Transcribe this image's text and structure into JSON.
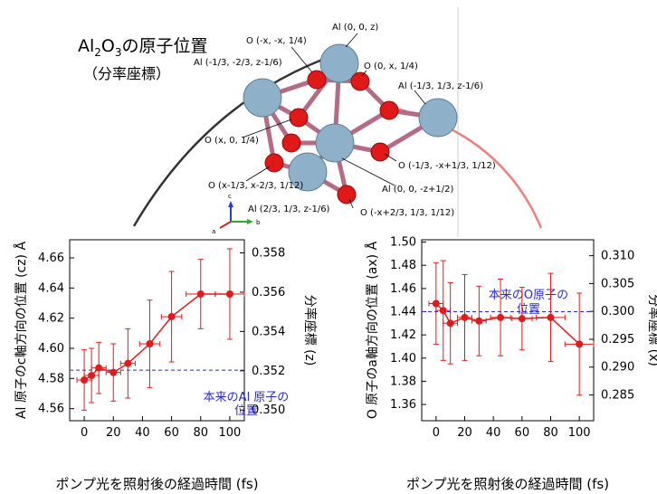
{
  "figure": {
    "title_prefix": "Al",
    "title_sub1": "2",
    "title_mid": "O",
    "title_sub2": "3",
    "title_suffix": "の原子位置",
    "subtitle": "（分率座標）"
  },
  "colors": {
    "al_atom": "#8fb0c9",
    "o_atom": "#e01818",
    "bond": "#b56b86",
    "series": "#e31a1c",
    "reference": "#2a2ad4",
    "arrow_dark": "#333333",
    "arrow_light": "#f08080"
  },
  "structure": {
    "labels": [
      {
        "text": "Al (0, 0, z)"
      },
      {
        "text": "O (-x, -x, 1/4)"
      },
      {
        "text": "Al (-1/3, -2/3, z-1/6)"
      },
      {
        "text": "O (0, x, 1/4)"
      },
      {
        "text": "Al (-1/3, 1/3, z-1/6)"
      },
      {
        "text": "O (x, 0, 1/4)"
      },
      {
        "text": "O (-1/3, -x+1/3, 1/12)"
      },
      {
        "text": "O (x-1/3, x-2/3, 1/12)"
      },
      {
        "text": "Al (0, 0, -z+1/2)"
      },
      {
        "text": "Al (2/3, 1/3, z-1/6)"
      },
      {
        "text": "O (-x+2/3, 1/3, 1/12)"
      }
    ],
    "axes": {
      "c": "c",
      "b": "b",
      "a": "a"
    }
  },
  "chart_data": [
    {
      "type": "scatter",
      "x": [
        0,
        5,
        10,
        20,
        30,
        45,
        60,
        80,
        100
      ],
      "y": [
        4.579,
        4.582,
        4.587,
        4.584,
        4.59,
        4.603,
        4.621,
        4.636,
        4.636
      ],
      "yerr": [
        0.02,
        0.018,
        0.017,
        0.019,
        0.023,
        0.029,
        0.03,
        0.023,
        0.03
      ],
      "xerr": [
        5,
        5,
        5,
        5,
        5,
        7,
        7,
        10,
        10
      ],
      "series": [
        {
          "name": "",
          "color": "#e31a1c"
        }
      ],
      "reference": {
        "value": 4.5855,
        "label_line1": "本来のAl 原子の",
        "label_line2": "位置"
      },
      "xlabel": "ポンプ光を照射後の経過時間 (fs)",
      "ylabel": "Al 原子のc軸方向の位置 (cz) Å",
      "y2label": "分率座標 (z)",
      "xlim": [
        -10,
        110
      ],
      "ylim": [
        4.552,
        4.672
      ],
      "xticks": [
        0,
        20,
        40,
        60,
        80,
        100
      ],
      "yticks": [
        4.56,
        4.58,
        4.6,
        4.62,
        4.64,
        4.66
      ],
      "y2ticks": [
        0.35,
        0.352,
        0.354,
        0.356,
        0.358
      ],
      "y2_per_y": 0.07677
    },
    {
      "type": "scatter",
      "x": [
        0,
        5,
        10,
        20,
        30,
        45,
        60,
        80,
        100
      ],
      "y": [
        1.447,
        1.441,
        1.43,
        1.435,
        1.432,
        1.435,
        1.434,
        1.435,
        1.412
      ],
      "yerr": [
        0.035,
        0.043,
        0.035,
        0.037,
        0.03,
        0.033,
        0.027,
        0.038,
        0.044
      ],
      "xerr": [
        5,
        5,
        5,
        5,
        5,
        7,
        7,
        10,
        10
      ],
      "series": [
        {
          "name": "",
          "color": "#e31a1c"
        }
      ],
      "reference": {
        "value": 1.44,
        "label_line1": "本来のO原子の",
        "label_line2": "位置"
      },
      "xlabel": "ポンプ光を照射後の経過時間 (fs)",
      "ylabel": "O 原子のa軸方向の位置 (ax) Å",
      "y2label": "分率座標 (x)",
      "xlim": [
        -10,
        110
      ],
      "ylim": [
        1.346,
        1.502
      ],
      "xticks": [
        0,
        20,
        40,
        60,
        80,
        100
      ],
      "yticks": [
        1.36,
        1.38,
        1.4,
        1.42,
        1.44,
        1.46,
        1.48,
        1.5
      ],
      "y2ticks": [
        0.285,
        0.29,
        0.295,
        0.3,
        0.305,
        0.31
      ],
      "y2_per_y": 0.2083
    }
  ]
}
